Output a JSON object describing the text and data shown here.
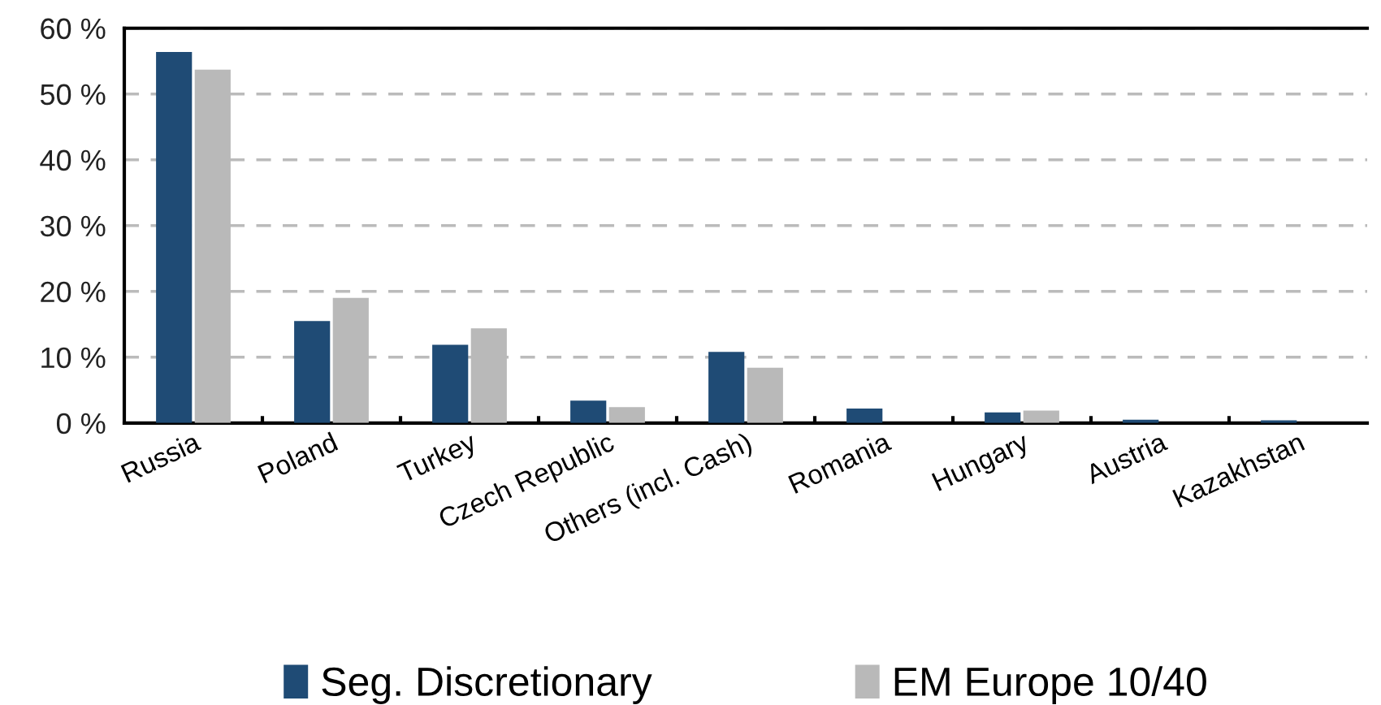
{
  "chart_data": {
    "type": "bar",
    "categories": [
      "Russia",
      "Poland",
      "Turkey",
      "Czech Republic",
      "Others (incl. Cash)",
      "Romania",
      "Hungary",
      "Austria",
      "Kazakhstan"
    ],
    "series": [
      {
        "name": "Seg. Discretionary",
        "color": "#1f4b75",
        "values": [
          56.4,
          15.5,
          11.9,
          3.4,
          10.8,
          2.2,
          1.6,
          0.5,
          0.4
        ]
      },
      {
        "name": "EM Europe 10/40",
        "color": "#b9b9b9",
        "values": [
          53.7,
          19.0,
          14.4,
          2.4,
          8.4,
          null,
          1.9,
          null,
          null
        ]
      }
    ],
    "ylim": [
      0,
      60
    ],
    "yticks": [
      {
        "value": 0,
        "label": "0 %"
      },
      {
        "value": 10,
        "label": "10 %"
      },
      {
        "value": 20,
        "label": "20 %"
      },
      {
        "value": 30,
        "label": "30 %"
      },
      {
        "value": 40,
        "label": "40 %"
      },
      {
        "value": 50,
        "label": "50 %"
      },
      {
        "value": 60,
        "label": "60 %"
      }
    ],
    "grid": "y",
    "legend": "bottom"
  }
}
